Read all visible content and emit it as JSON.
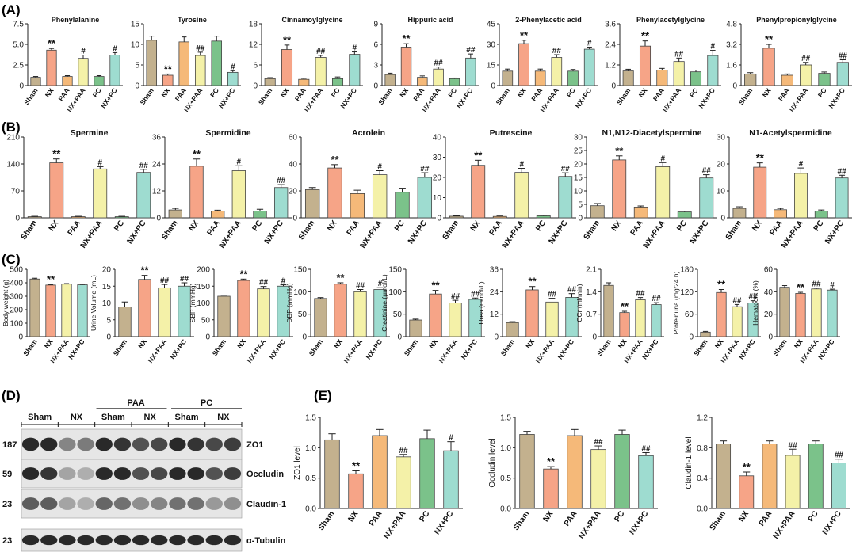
{
  "panels": {
    "A": "(A)",
    "B": "(B)",
    "C": "(C)",
    "D": "(D)",
    "E": "(E)"
  },
  "colors": {
    "Sham": "#c3b18e",
    "NX": "#f6a487",
    "PAA": "#f5b979",
    "NX+PAA": "#f4f1a8",
    "PC": "#7bc28a",
    "NX+PC": "#9edcd0",
    "frame": "#444444"
  },
  "chart_data": [
    {
      "id": "A1",
      "type": "bar",
      "title": "Phenylalanine",
      "ylabel": "",
      "ylim": [
        0,
        7.5
      ],
      "ticks": [
        0,
        2.5,
        5.0,
        7.5
      ],
      "tick_labels": [
        "0",
        "2.5",
        "5.0",
        "7.5"
      ],
      "categories": [
        "Sham",
        "NX",
        "PAA",
        "NX+PAA",
        "PC",
        "NX+PC"
      ],
      "values": [
        1.0,
        4.3,
        1.1,
        3.3,
        1.1,
        3.7
      ],
      "errors": [
        0.1,
        0.2,
        0.1,
        0.4,
        0.1,
        0.3
      ],
      "marks": [
        "",
        "**",
        "",
        "#",
        "",
        "#"
      ]
    },
    {
      "id": "A2",
      "type": "bar",
      "title": "Tyrosine",
      "ylabel": "",
      "ylim": [
        0,
        15
      ],
      "ticks": [
        0,
        5,
        10,
        15
      ],
      "tick_labels": [
        "0",
        "5",
        "10",
        "15"
      ],
      "categories": [
        "Sham",
        "NX",
        "PAA",
        "NX+PAA",
        "PC",
        "NX+PC"
      ],
      "values": [
        11.0,
        2.5,
        10.6,
        7.3,
        10.8,
        3.2
      ],
      "errors": [
        1.0,
        0.3,
        1.2,
        0.8,
        1.2,
        0.4
      ],
      "marks": [
        "",
        "**",
        "",
        "##",
        "",
        "#"
      ]
    },
    {
      "id": "A3",
      "type": "bar",
      "title": "Cinnamoylglycine",
      "ylabel": "",
      "ylim": [
        0,
        18
      ],
      "ticks": [
        0,
        6,
        12,
        18
      ],
      "tick_labels": [
        "0",
        "6",
        "12",
        "18"
      ],
      "categories": [
        "Sham",
        "NX",
        "PAA",
        "NX+PAA",
        "PC",
        "NX+PC"
      ],
      "values": [
        2.0,
        10.5,
        1.8,
        8.2,
        2.0,
        9.1
      ],
      "errors": [
        0.3,
        1.3,
        0.3,
        0.6,
        0.5,
        0.7
      ],
      "marks": [
        "",
        "**",
        "",
        "##",
        "",
        "#"
      ]
    },
    {
      "id": "A4",
      "type": "bar",
      "title": "Hippuric acid",
      "ylabel": "",
      "ylim": [
        0,
        9
      ],
      "ticks": [
        0,
        3,
        6,
        9
      ],
      "tick_labels": [
        "0",
        "3",
        "6",
        "9"
      ],
      "categories": [
        "Sham",
        "NX",
        "PAA",
        "NX+PAA",
        "PC",
        "NX+PC"
      ],
      "values": [
        1.6,
        5.6,
        1.2,
        2.4,
        1.0,
        4.0
      ],
      "errors": [
        0.2,
        0.5,
        0.2,
        0.3,
        0.1,
        0.6
      ],
      "marks": [
        "",
        "**",
        "",
        "##",
        "",
        "##"
      ]
    },
    {
      "id": "A5",
      "type": "bar",
      "title": "2-Phenylacetic acid",
      "ylabel": "",
      "ylim": [
        0,
        45
      ],
      "ticks": [
        0,
        15,
        30,
        45
      ],
      "tick_labels": [
        "0",
        "15",
        "30",
        "45"
      ],
      "categories": [
        "Sham",
        "NX",
        "PAA",
        "NX+PAA",
        "PC",
        "NX+PC"
      ],
      "values": [
        10.5,
        30.5,
        10.5,
        20.5,
        10.5,
        26.5
      ],
      "errors": [
        1.5,
        2.5,
        1.5,
        2.0,
        1.2,
        1.5
      ],
      "marks": [
        "",
        "**",
        "",
        "##",
        "",
        "#"
      ]
    },
    {
      "id": "A6",
      "type": "bar",
      "title": "Phenylacetylglycine",
      "ylabel": "",
      "ylim": [
        0,
        3.6
      ],
      "ticks": [
        0,
        1.2,
        2.4,
        3.6
      ],
      "tick_labels": [
        "0",
        "1.2",
        "2.4",
        "3.6"
      ],
      "categories": [
        "Sham",
        "NX",
        "PAA",
        "NX+PAA",
        "PC",
        "NX+PC"
      ],
      "values": [
        0.85,
        2.3,
        0.9,
        1.4,
        0.8,
        1.75
      ],
      "errors": [
        0.1,
        0.3,
        0.1,
        0.2,
        0.1,
        0.3
      ],
      "marks": [
        "",
        "**",
        "",
        "##",
        "",
        "#"
      ]
    },
    {
      "id": "A7",
      "type": "bar",
      "title": "Phenylpropionylglycine",
      "ylabel": "",
      "ylim": [
        0,
        4.8
      ],
      "ticks": [
        0,
        1.6,
        3.2,
        4.8
      ],
      "tick_labels": [
        "0",
        "1.6",
        "3.2",
        "4.8"
      ],
      "categories": [
        "Sham",
        "NX",
        "PAA",
        "NX+PAA",
        "PC",
        "NX+PC"
      ],
      "values": [
        0.9,
        2.9,
        0.8,
        1.6,
        0.95,
        1.8
      ],
      "errors": [
        0.1,
        0.3,
        0.1,
        0.2,
        0.1,
        0.2
      ],
      "marks": [
        "",
        "**",
        "",
        "##",
        "",
        "##"
      ]
    },
    {
      "id": "B1",
      "type": "bar",
      "title": "Spermine",
      "ylabel": "",
      "ylim": [
        0,
        210
      ],
      "ticks": [
        0,
        70,
        140,
        210
      ],
      "tick_labels": [
        "0",
        "70",
        "140",
        "210"
      ],
      "categories": [
        "Sham",
        "NX",
        "PAA",
        "NX+PAA",
        "PC",
        "NX+PC"
      ],
      "values": [
        3,
        143,
        3,
        127,
        3,
        118
      ],
      "errors": [
        1,
        10,
        1,
        6,
        1,
        8
      ],
      "marks": [
        "",
        "**",
        "",
        "#",
        "",
        "##"
      ]
    },
    {
      "id": "B2",
      "type": "bar",
      "title": "Spermidine",
      "ylabel": "",
      "ylim": [
        0,
        36
      ],
      "ticks": [
        0,
        12,
        24,
        36
      ],
      "tick_labels": [
        "0",
        "12",
        "24",
        "36"
      ],
      "categories": [
        "Sham",
        "NX",
        "PAA",
        "NX+PAA",
        "PC",
        "NX+PC"
      ],
      "values": [
        3.5,
        23,
        3.0,
        21,
        3.0,
        13.5
      ],
      "errors": [
        0.7,
        3.2,
        0.4,
        2.2,
        0.8,
        1.3
      ],
      "marks": [
        "",
        "**",
        "",
        "#",
        "",
        "##"
      ]
    },
    {
      "id": "B3",
      "type": "bar",
      "title": "Acrolein",
      "ylabel": "",
      "ylim": [
        0,
        60
      ],
      "ticks": [
        0,
        20,
        40,
        60
      ],
      "tick_labels": [
        "0",
        "20",
        "40",
        "60"
      ],
      "categories": [
        "Sham",
        "NX",
        "PAA",
        "NX+PAA",
        "PC",
        "NX+PC"
      ],
      "values": [
        21,
        37,
        18,
        32,
        19,
        30
      ],
      "errors": [
        1.5,
        2.5,
        2.5,
        3.0,
        3.0,
        3.5
      ],
      "marks": [
        "",
        "**",
        "",
        "#",
        "",
        "##"
      ]
    },
    {
      "id": "B4",
      "type": "bar",
      "title": "Putrescine",
      "ylabel": "",
      "ylim": [
        0,
        40
      ],
      "ticks": [
        0,
        10,
        20,
        30,
        40
      ],
      "tick_labels": [
        "0",
        "10",
        "20",
        "30",
        "40"
      ],
      "categories": [
        "Sham",
        "NX",
        "PAA",
        "NX+PAA",
        "PC",
        "NX+PC"
      ],
      "values": [
        0.8,
        26,
        0.7,
        22.5,
        1.0,
        20.5
      ],
      "errors": [
        0.2,
        2.5,
        0.2,
        2.0,
        0.3,
        1.8
      ],
      "marks": [
        "",
        "**",
        "",
        "#",
        "",
        "##"
      ]
    },
    {
      "id": "B5",
      "type": "bar",
      "title": "N1,N12-Diacetylspermine",
      "ylabel": "",
      "ylim": [
        0,
        30
      ],
      "ticks": [
        0,
        5,
        10,
        15,
        20,
        25,
        30
      ],
      "tick_labels": [
        "0",
        "5",
        "10",
        "15",
        "20",
        "25",
        "30"
      ],
      "categories": [
        "Sham",
        "NX",
        "PAA",
        "NX+PAA",
        "PC",
        "NX+PC"
      ],
      "values": [
        4.5,
        21.5,
        4.0,
        19.0,
        2.2,
        14.8
      ],
      "errors": [
        0.8,
        1.5,
        0.4,
        1.5,
        0.3,
        1.2
      ],
      "marks": [
        "",
        "**",
        "",
        "#",
        "",
        "##"
      ]
    },
    {
      "id": "B6",
      "type": "bar",
      "title": "N1-Acetylspermidine",
      "ylabel": "",
      "ylim": [
        0,
        30
      ],
      "ticks": [
        0,
        10,
        20,
        30
      ],
      "tick_labels": [
        "0",
        "10",
        "20",
        "30"
      ],
      "categories": [
        "Sham",
        "NX",
        "PAA",
        "NX+PAA",
        "PC",
        "NX+PC"
      ],
      "values": [
        3.5,
        18.8,
        3.0,
        16.5,
        2.5,
        14.8
      ],
      "errors": [
        0.6,
        1.6,
        0.5,
        2.0,
        0.4,
        1.0
      ],
      "marks": [
        "",
        "**",
        "",
        "#",
        "",
        "##"
      ]
    },
    {
      "id": "C1",
      "type": "bar",
      "title": "",
      "ylabel": "Body weight (g)",
      "ylim": [
        0,
        500
      ],
      "ticks": [
        0,
        100,
        200,
        300,
        400,
        500
      ],
      "tick_labels": [
        "0",
        "100",
        "200",
        "300",
        "400",
        "500"
      ],
      "categories": [
        "Sham",
        "NX",
        "NX+PAA",
        "NX+PC"
      ],
      "values": [
        428,
        383,
        390,
        385
      ],
      "errors": [
        6,
        5,
        4,
        4
      ],
      "marks": [
        "",
        "**",
        "",
        ""
      ]
    },
    {
      "id": "C2",
      "type": "bar",
      "title": "",
      "ylabel": "Urine Volume (mL)",
      "ylim": [
        0,
        20
      ],
      "ticks": [
        0,
        5,
        10,
        15,
        20
      ],
      "tick_labels": [
        "0",
        "5",
        "10",
        "15",
        "20"
      ],
      "categories": [
        "Sham",
        "NX",
        "NX+PAA",
        "NX+PC"
      ],
      "values": [
        8.8,
        17.0,
        14.5,
        15.0
      ],
      "errors": [
        1.5,
        1.2,
        1.0,
        1.0
      ],
      "marks": [
        "",
        "**",
        "##",
        "##"
      ]
    },
    {
      "id": "C3",
      "type": "bar",
      "title": "",
      "ylabel": "SBP (mmHg)",
      "ylim": [
        0,
        200
      ],
      "ticks": [
        0,
        50,
        100,
        150,
        200
      ],
      "tick_labels": [
        "0",
        "50",
        "100",
        "150",
        "200"
      ],
      "categories": [
        "Sham",
        "NX",
        "NX+PAA",
        "NX+PC"
      ],
      "values": [
        120,
        167,
        142,
        150
      ],
      "errors": [
        3,
        4,
        7,
        4
      ],
      "marks": [
        "",
        "**",
        "##",
        "#"
      ]
    },
    {
      "id": "C4",
      "type": "bar",
      "title": "",
      "ylabel": "DBP (mmHg)",
      "ylim": [
        0,
        150
      ],
      "ticks": [
        0,
        50,
        100,
        150
      ],
      "tick_labels": [
        "0",
        "50",
        "100",
        "150"
      ],
      "categories": [
        "Sham",
        "NX",
        "NX+PAA",
        "NX+PC"
      ],
      "values": [
        85,
        117,
        100,
        105
      ],
      "errors": [
        2,
        3,
        5,
        4
      ],
      "marks": [
        "",
        "**",
        "##",
        "#"
      ]
    },
    {
      "id": "C5",
      "type": "bar",
      "title": "",
      "ylabel": "Creatinine (μmol/L)",
      "ylim": [
        0,
        150
      ],
      "ticks": [
        0,
        50,
        100,
        150
      ],
      "tick_labels": [
        "0",
        "50",
        "100",
        "150"
      ],
      "categories": [
        "Sham",
        "NX",
        "NX+PAA",
        "NX+PC"
      ],
      "values": [
        37,
        95,
        75,
        83
      ],
      "errors": [
        2,
        8,
        6,
        3
      ],
      "marks": [
        "",
        "**",
        "##",
        "##"
      ]
    },
    {
      "id": "C6",
      "type": "bar",
      "title": "",
      "ylabel": "Urea (mmol/L)",
      "ylim": [
        0,
        36
      ],
      "ticks": [
        0,
        12,
        24,
        36
      ],
      "tick_labels": [
        "0",
        "12",
        "24",
        "36"
      ],
      "categories": [
        "Sham",
        "NX",
        "NX+PAA",
        "NX+PC"
      ],
      "values": [
        7.5,
        25.0,
        18.5,
        21.0
      ],
      "errors": [
        0.5,
        1.8,
        2.0,
        2.0
      ],
      "marks": [
        "",
        "**",
        "##",
        "##"
      ]
    },
    {
      "id": "C7",
      "type": "bar",
      "title": "",
      "ylabel": "CCr (ml/min)",
      "ylim": [
        0,
        2.1
      ],
      "ticks": [
        0,
        0.7,
        1.4,
        2.1
      ],
      "tick_labels": [
        "0",
        "0.7",
        "1.4",
        "2.1"
      ],
      "categories": [
        "Sham",
        "NX",
        "NX+PAA",
        "NX+PC"
      ],
      "values": [
        1.6,
        0.75,
        1.15,
        1.0
      ],
      "errors": [
        0.08,
        0.04,
        0.07,
        0.06
      ],
      "marks": [
        "",
        "**",
        "##",
        "##"
      ]
    },
    {
      "id": "C8",
      "type": "bar",
      "title": "",
      "ylabel": "Proteinuria (mg/24 h)",
      "ylim": [
        0,
        180
      ],
      "ticks": [
        0,
        60,
        120,
        180
      ],
      "tick_labels": [
        "0",
        "60",
        "120",
        "180"
      ],
      "categories": [
        "Sham",
        "NX",
        "NX+PAA",
        "NX+PC"
      ],
      "values": [
        12,
        118,
        80,
        90
      ],
      "errors": [
        2,
        8,
        6,
        6
      ],
      "marks": [
        "",
        "**",
        "##",
        "##"
      ]
    },
    {
      "id": "C9",
      "type": "bar",
      "title": "",
      "ylabel": "Hematocrit (%)",
      "ylim": [
        0,
        60
      ],
      "ticks": [
        0,
        20,
        40,
        60
      ],
      "tick_labels": [
        "0",
        "20",
        "40",
        "60"
      ],
      "categories": [
        "Sham",
        "NX",
        "NX+PAA",
        "NX+PC"
      ],
      "values": [
        44,
        38.5,
        42.5,
        41.5
      ],
      "errors": [
        1.5,
        1.0,
        0.8,
        0.8
      ],
      "marks": [
        "",
        "**",
        "##",
        "#"
      ]
    },
    {
      "id": "E1",
      "type": "bar",
      "title": "",
      "ylabel": "ZO1 level",
      "ylim": [
        0,
        1.5
      ],
      "ticks": [
        0,
        0.5,
        1.0,
        1.5
      ],
      "tick_labels": [
        "0.0",
        "0.5",
        "1.0",
        "1.5"
      ],
      "categories": [
        "Sham",
        "NX",
        "PAA",
        "NX+PAA",
        "PC",
        "NX+PC"
      ],
      "values": [
        1.13,
        0.57,
        1.2,
        0.85,
        1.15,
        0.95
      ],
      "errors": [
        0.1,
        0.05,
        0.1,
        0.04,
        0.14,
        0.15
      ],
      "marks": [
        "",
        "**",
        "",
        "##",
        "",
        "#"
      ]
    },
    {
      "id": "E2",
      "type": "bar",
      "title": "",
      "ylabel": "Occludin level",
      "ylim": [
        0,
        1.5
      ],
      "ticks": [
        0,
        0.5,
        1.0,
        1.5
      ],
      "tick_labels": [
        "0.0",
        "0.5",
        "1.0",
        "1.5"
      ],
      "categories": [
        "Sham",
        "NX",
        "PAA",
        "NX+PAA",
        "PC",
        "NX+PC"
      ],
      "values": [
        1.22,
        0.65,
        1.2,
        0.97,
        1.22,
        0.87
      ],
      "errors": [
        0.05,
        0.04,
        0.1,
        0.06,
        0.07,
        0.05
      ],
      "marks": [
        "",
        "**",
        "",
        "##",
        "",
        "##"
      ]
    },
    {
      "id": "E3",
      "type": "bar",
      "title": "",
      "ylabel": "Claudin-1 level",
      "ylim": [
        0,
        1.2
      ],
      "ticks": [
        0,
        0.4,
        0.8,
        1.2
      ],
      "tick_labels": [
        "0.0",
        "0.4",
        "0.8",
        "1.2"
      ],
      "categories": [
        "Sham",
        "NX",
        "PAA",
        "NX+PAA",
        "PC",
        "NX+PC"
      ],
      "values": [
        0.85,
        0.43,
        0.85,
        0.7,
        0.85,
        0.6
      ],
      "errors": [
        0.04,
        0.05,
        0.04,
        0.08,
        0.04,
        0.05
      ],
      "marks": [
        "",
        "**",
        "",
        "##",
        "",
        "##"
      ]
    }
  ],
  "western_blot": {
    "group_labels": [
      "PAA",
      "PC"
    ],
    "lane_labels": [
      "Sham",
      "NX",
      "Sham",
      "NX",
      "Sham",
      "NX"
    ],
    "rows": [
      {
        "mw": "187",
        "protein": "ZO1",
        "intensity": [
          0.95,
          0.95,
          0.5,
          0.55,
          0.95,
          0.9,
          0.75,
          0.8,
          0.95,
          0.9,
          0.8,
          0.85
        ]
      },
      {
        "mw": "59",
        "protein": "Occludin",
        "intensity": [
          0.95,
          0.9,
          0.35,
          0.3,
          0.95,
          0.95,
          0.75,
          0.8,
          0.95,
          0.95,
          0.75,
          0.85
        ]
      },
      {
        "mw": "23",
        "protein": "Claudin-1",
        "intensity": [
          0.7,
          0.7,
          0.35,
          0.3,
          0.65,
          0.6,
          0.45,
          0.5,
          0.6,
          0.6,
          0.4,
          0.45
        ]
      },
      {
        "mw": "23",
        "protein": "α-Tubulin",
        "intensity": [
          0.95,
          0.95,
          0.95,
          0.95,
          0.95,
          0.95,
          0.95,
          0.95,
          0.95,
          0.95,
          0.95,
          0.95
        ]
      }
    ]
  }
}
